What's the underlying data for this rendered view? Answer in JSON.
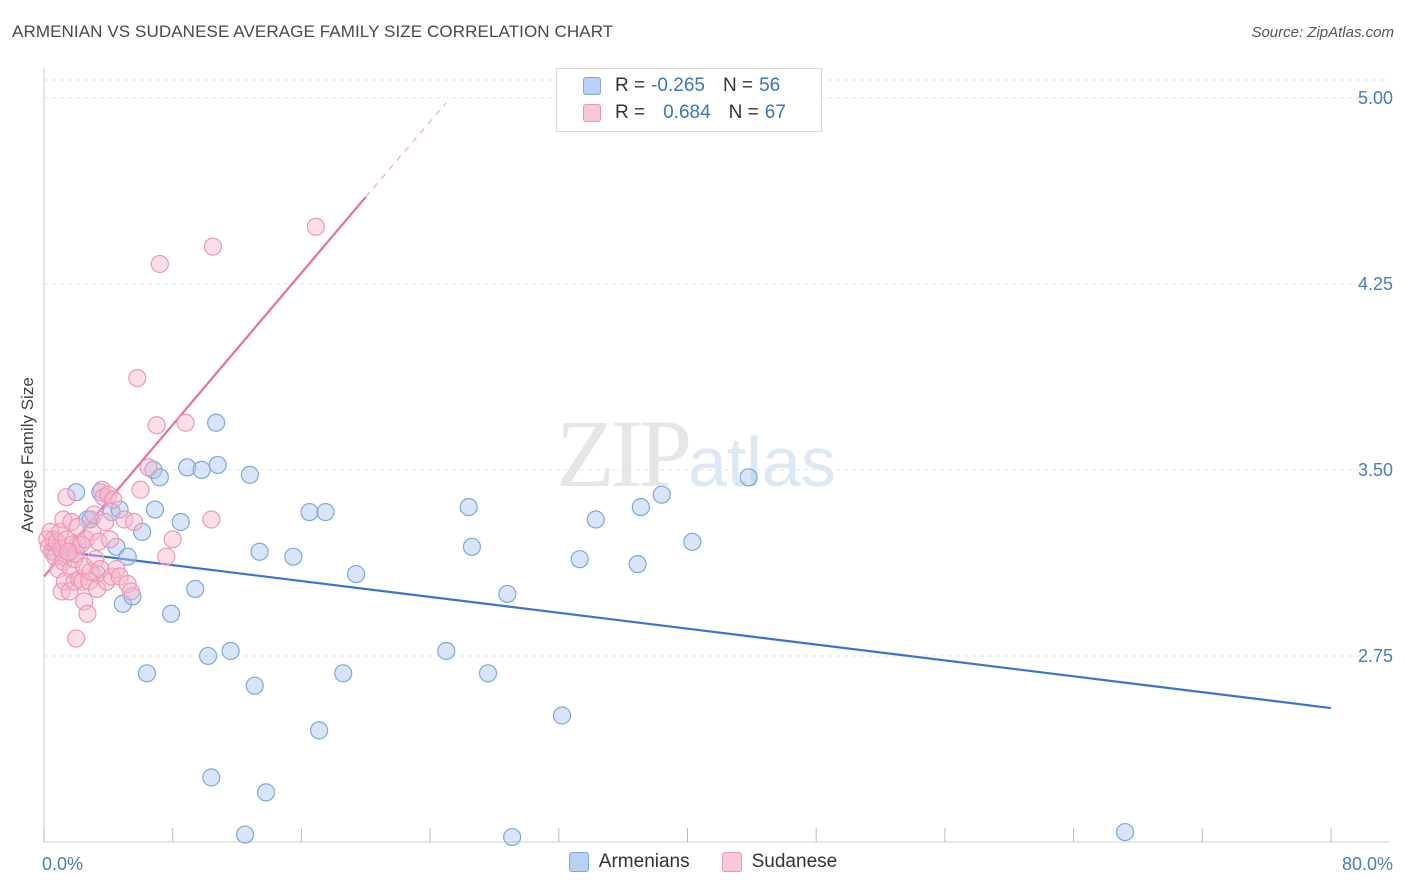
{
  "header": {
    "title": "ARMENIAN VS SUDANESE AVERAGE FAMILY SIZE CORRELATION CHART",
    "source": "Source: ZipAtlas.com"
  },
  "watermark": {
    "zip": "ZIP",
    "atlas": "atlas"
  },
  "legend": {
    "armenians": {
      "r_label": "R =",
      "r_value": "-0.265",
      "n_label": "N =",
      "n_value": "56"
    },
    "sudanese": {
      "r_label": "R =",
      "r_value": "0.684",
      "n_label": "N =",
      "n_value": "67"
    }
  },
  "bottom_legend": {
    "armenians": "Armenians",
    "sudanese": "Sudanese"
  },
  "colors": {
    "blue": "#3b73d0",
    "blue_fill": "#a9c6ee",
    "pink": "#e8709a",
    "pink_fill": "#f6b5cb",
    "grid": "#e3e3e3",
    "tick": "#4a7cc4"
  },
  "chart_data": {
    "type": "scatter",
    "title": "ARMENIAN VS SUDANESE AVERAGE FAMILY SIZE CORRELATION CHART",
    "xlabel": "",
    "ylabel": "Average Family Size",
    "xlim": [
      0,
      80
    ],
    "ylim": [
      2.0,
      5.12
    ],
    "x_tick_labels": [
      "0.0%",
      "80.0%"
    ],
    "y_ticks": [
      2.75,
      3.5,
      4.25,
      5.0
    ],
    "y_tick_labels": [
      "2.75",
      "3.50",
      "4.25",
      "5.00"
    ],
    "series": [
      {
        "name": "Armenians",
        "trend": {
          "x": [
            0,
            80
          ],
          "y": [
            3.18,
            2.54
          ]
        },
        "points": [
          [
            0.6,
            3.17
          ],
          [
            1.2,
            3.15
          ],
          [
            1.7,
            3.17
          ],
          [
            2.0,
            3.41
          ],
          [
            2.7,
            3.3
          ],
          [
            2.9,
            3.3
          ],
          [
            3.3,
            3.08
          ],
          [
            3.5,
            3.41
          ],
          [
            4.2,
            3.33
          ],
          [
            4.5,
            3.19
          ],
          [
            4.9,
            2.96
          ],
          [
            5.2,
            3.15
          ],
          [
            5.5,
            2.99
          ],
          [
            6.1,
            3.25
          ],
          [
            6.4,
            2.68
          ],
          [
            6.8,
            3.5
          ],
          [
            6.9,
            3.34
          ],
          [
            7.2,
            3.47
          ],
          [
            7.9,
            2.92
          ],
          [
            8.5,
            3.29
          ],
          [
            8.9,
            3.51
          ],
          [
            9.4,
            3.02
          ],
          [
            9.8,
            3.5
          ],
          [
            10.2,
            2.75
          ],
          [
            10.4,
            2.26
          ],
          [
            10.7,
            3.69
          ],
          [
            11.6,
            2.77
          ],
          [
            12.5,
            2.03
          ],
          [
            12.8,
            3.48
          ],
          [
            13.1,
            2.63
          ],
          [
            13.4,
            3.17
          ],
          [
            13.8,
            2.2
          ],
          [
            15.5,
            3.15
          ],
          [
            16.5,
            3.33
          ],
          [
            17.1,
            2.45
          ],
          [
            17.5,
            3.33
          ],
          [
            18.6,
            2.68
          ],
          [
            19.4,
            3.08
          ],
          [
            25.0,
            2.77
          ],
          [
            26.4,
            3.35
          ],
          [
            26.6,
            3.19
          ],
          [
            27.6,
            2.68
          ],
          [
            28.8,
            3.0
          ],
          [
            29.1,
            2.02
          ],
          [
            32.2,
            2.51
          ],
          [
            33.3,
            3.14
          ],
          [
            34.3,
            3.3
          ],
          [
            36.9,
            3.12
          ],
          [
            37.1,
            3.35
          ],
          [
            38.4,
            3.4
          ],
          [
            40.3,
            3.21
          ],
          [
            43.8,
            3.47
          ],
          [
            67.2,
            2.04
          ],
          [
            10.8,
            3.52
          ],
          [
            4.7,
            3.34
          ],
          [
            2.1,
            3.2
          ]
        ]
      },
      {
        "name": "Sudanese",
        "trend": {
          "x": [
            0,
            20
          ],
          "y": [
            3.07,
            4.6
          ]
        },
        "trend_dashed": {
          "x": [
            20,
            25
          ],
          "y": [
            4.6,
            4.98
          ]
        },
        "points": [
          [
            0.2,
            3.22
          ],
          [
            0.3,
            3.19
          ],
          [
            0.4,
            3.25
          ],
          [
            0.5,
            3.17
          ],
          [
            0.6,
            3.22
          ],
          [
            0.7,
            3.15
          ],
          [
            0.8,
            3.21
          ],
          [
            0.9,
            3.1
          ],
          [
            1.0,
            3.25
          ],
          [
            1.1,
            3.01
          ],
          [
            1.1,
            3.18
          ],
          [
            1.2,
            3.3
          ],
          [
            1.2,
            3.13
          ],
          [
            1.3,
            3.05
          ],
          [
            1.4,
            3.39
          ],
          [
            1.4,
            3.22
          ],
          [
            1.5,
            3.17
          ],
          [
            1.6,
            3.01
          ],
          [
            1.7,
            3.29
          ],
          [
            1.7,
            3.1
          ],
          [
            1.8,
            3.2
          ],
          [
            1.9,
            3.05
          ],
          [
            1.9,
            3.14
          ],
          [
            2.0,
            2.82
          ],
          [
            2.0,
            3.16
          ],
          [
            2.1,
            3.27
          ],
          [
            2.2,
            3.06
          ],
          [
            2.3,
            3.2
          ],
          [
            2.4,
            3.05
          ],
          [
            2.5,
            2.97
          ],
          [
            2.5,
            3.11
          ],
          [
            2.6,
            3.22
          ],
          [
            2.7,
            2.92
          ],
          [
            2.8,
            3.05
          ],
          [
            2.9,
            3.09
          ],
          [
            3.0,
            3.25
          ],
          [
            3.1,
            3.32
          ],
          [
            3.2,
            3.14
          ],
          [
            3.3,
            3.02
          ],
          [
            3.4,
            3.21
          ],
          [
            3.5,
            3.1
          ],
          [
            3.6,
            3.42
          ],
          [
            3.7,
            3.39
          ],
          [
            3.8,
            3.29
          ],
          [
            3.9,
            3.05
          ],
          [
            4.0,
            3.4
          ],
          [
            4.1,
            3.22
          ],
          [
            4.2,
            3.07
          ],
          [
            4.3,
            3.38
          ],
          [
            4.5,
            3.1
          ],
          [
            4.7,
            3.07
          ],
          [
            5.0,
            3.3
          ],
          [
            5.2,
            3.04
          ],
          [
            5.4,
            3.01
          ],
          [
            5.6,
            3.29
          ],
          [
            5.8,
            3.87
          ],
          [
            6.0,
            3.42
          ],
          [
            6.5,
            3.51
          ],
          [
            7.0,
            3.68
          ],
          [
            7.2,
            4.33
          ],
          [
            7.6,
            3.15
          ],
          [
            8.0,
            3.22
          ],
          [
            8.8,
            3.69
          ],
          [
            10.4,
            3.3
          ],
          [
            10.5,
            4.4
          ],
          [
            16.9,
            4.48
          ],
          [
            1.5,
            3.17
          ]
        ]
      }
    ]
  }
}
